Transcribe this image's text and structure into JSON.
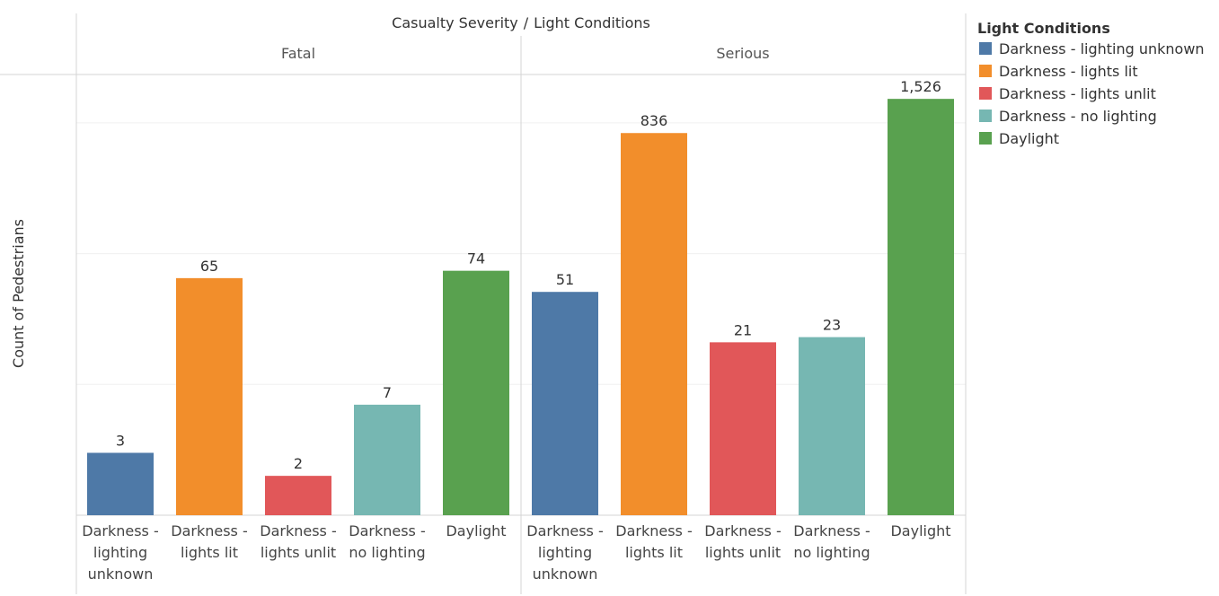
{
  "chart_data": {
    "type": "bar",
    "title": "Casualty Severity / Light Conditions",
    "title_parts": [
      "Casualty Severity",
      "/",
      "Light Conditions"
    ],
    "ylabel": "Count of Pedestrians",
    "yscale": "log",
    "ylim": [
      1,
      2400
    ],
    "grid": true,
    "legend_position": "right",
    "panels": [
      "Fatal",
      "Serious"
    ],
    "categories": [
      "Darkness - lighting unknown",
      "Darkness - lights lit",
      "Darkness - lights unlit",
      "Darkness - no lighting",
      "Daylight"
    ],
    "category_label_lines": [
      [
        "Darkness -",
        "lighting",
        "unknown"
      ],
      [
        "Darkness -",
        "lights lit"
      ],
      [
        "Darkness -",
        "lights unlit"
      ],
      [
        "Darkness -",
        "no lighting"
      ],
      [
        "Daylight"
      ]
    ],
    "values": {
      "Fatal": [
        3,
        65,
        2,
        7,
        74
      ],
      "Serious": [
        51,
        836,
        21,
        23,
        1526
      ]
    },
    "data_labels": {
      "Fatal": [
        "3",
        "65",
        "2",
        "7",
        "74"
      ],
      "Serious": [
        "51",
        "836",
        "21",
        "23",
        "1,526"
      ]
    },
    "colors": [
      "#4e79a7",
      "#f28e2b",
      "#e15759",
      "#76b7b2",
      "#59a14f"
    ],
    "legend": {
      "title": "Light Conditions",
      "items": [
        "Darkness - lighting unknown",
        "Darkness - lights lit",
        "Darkness - lights unlit",
        "Darkness - no lighting",
        "Daylight"
      ]
    }
  }
}
